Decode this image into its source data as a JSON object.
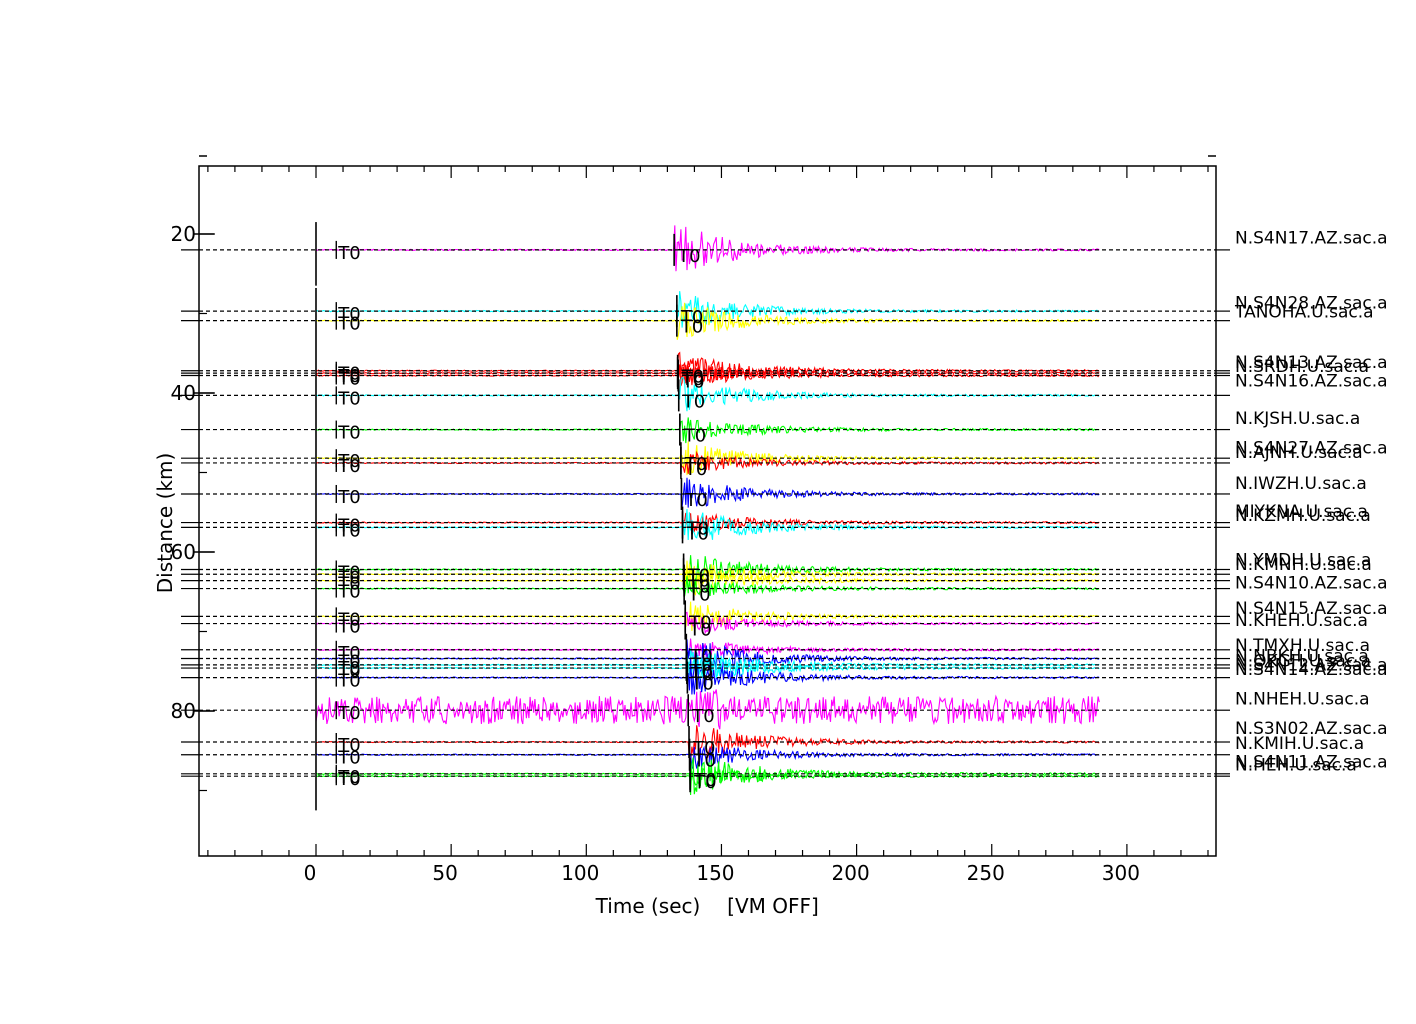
{
  "chart_data": {
    "type": "line",
    "title": "",
    "xlabel": "Time (sec)",
    "xlabel_suffix": "[VM OFF]",
    "ylabel": "Distance (km)",
    "xlim": [
      -43,
      333
    ],
    "ylim": [
      3,
      104
    ],
    "x_ticks": [
      0,
      50,
      100,
      150,
      200,
      250,
      300
    ],
    "y_ticks": [
      20,
      40,
      60,
      80
    ],
    "grid": false,
    "trace_start_time": 0,
    "trace_end_time": 290,
    "pick_label": "T0",
    "series": [
      {
        "name": "N.S4N17.AZ.sac.a",
        "distance": 22.0,
        "color": "#ff00ff",
        "t0": 132.5,
        "amp": 4.6
      },
      {
        "name": "N.S4N28.AZ.sac.a",
        "distance": 29.7,
        "color": "#00ffff",
        "t0": 133.5,
        "amp": 3.4
      },
      {
        "name": "TANOHA.U.sac.a",
        "distance": 30.9,
        "color": "#ffff00",
        "t0": 133.5,
        "amp": 3.4
      },
      {
        "name": "N.S4N13.AZ.sac.a",
        "distance": 37.2,
        "color": "#ff0000",
        "t0": 133.8,
        "amp": 3.2
      },
      {
        "name": "N.SRDH.U.sac.a",
        "distance": 37.5,
        "color": "#ff0000",
        "t0": 133.8,
        "amp": 2.0
      },
      {
        "name": "N.S4N16.AZ.sac.a",
        "distance": 37.8,
        "color": "#ff0000",
        "t0": 134.0,
        "amp": 2.0
      },
      {
        "name": "N.KJSH.U.sac.a",
        "distance": 40.3,
        "color": "#00ffff",
        "t0": 134.2,
        "amp": 3.0
      },
      {
        "name": "N.KJSH.U.sac.a",
        "distance": 44.6,
        "color": "#00ff00",
        "t0": 134.6,
        "amp": 2.4
      },
      {
        "name": "N.S4N27.AZ.sac.a",
        "distance": 48.2,
        "color": "#ffff00",
        "t0": 135.0,
        "amp": 3.0
      },
      {
        "name": "N.AJNH.U.sac.a",
        "distance": 48.8,
        "color": "#ff0000",
        "t0": 135.0,
        "amp": 2.0
      },
      {
        "name": "N.IWZH.U.sac.a",
        "distance": 52.7,
        "color": "#0000ff",
        "t0": 135.2,
        "amp": 2.8
      },
      {
        "name": "MIYKNA.U.sac.a",
        "distance": 56.3,
        "color": "#ff0000",
        "t0": 135.6,
        "amp": 2.0
      },
      {
        "name": "N.KZMH.U.sac.a",
        "distance": 56.9,
        "color": "#00ffff",
        "t0": 135.6,
        "amp": 3.2
      },
      {
        "name": "N.YMDH.U.sac.a",
        "distance": 62.2,
        "color": "#00ff00",
        "t0": 136.0,
        "amp": 3.0
      },
      {
        "name": "N.KMNH.U.sac.a",
        "distance": 62.8,
        "color": "#ffff00",
        "t0": 136.0,
        "amp": 2.4
      },
      {
        "name": "N.S4N10.AZ.sac.a",
        "distance": 63.6,
        "color": "#ffff00",
        "t0": 136.2,
        "amp": 2.6
      },
      {
        "name": "N.S4N10.AZ.sac.a",
        "distance": 64.6,
        "color": "#00ff00",
        "t0": 136.2,
        "amp": 2.2
      },
      {
        "name": "N.S4N15.AZ.sac.a",
        "distance": 68.1,
        "color": "#ffff00",
        "t0": 136.6,
        "amp": 2.8
      },
      {
        "name": "N.KHEH.U.sac.a",
        "distance": 69.0,
        "color": "#ff00ff",
        "t0": 136.6,
        "amp": 2.0
      },
      {
        "name": "N.TMXH.U.sac.a",
        "distance": 72.3,
        "color": "#ff00ff",
        "t0": 137.0,
        "amp": 2.0
      },
      {
        "name": "N.NBKH.U.sac.a",
        "distance": 73.4,
        "color": "#0000ff",
        "t0": 137.0,
        "amp": 3.6
      },
      {
        "name": "N.OKGH.U.sac.a",
        "distance": 74.2,
        "color": "#00ffff",
        "t0": 137.0,
        "amp": 3.0
      },
      {
        "name": "N.S4N14.AZ.sac.a",
        "distance": 74.6,
        "color": "#00ffff",
        "t0": 137.2,
        "amp": 2.6
      },
      {
        "name": "N.S4N14.AZ.sac.a",
        "distance": 75.8,
        "color": "#0000ff",
        "t0": 137.4,
        "amp": 3.2
      },
      {
        "name": "N.NHEH.U.sac.a",
        "distance": 79.9,
        "color": "#ff00ff",
        "t0": 137.7,
        "amp": 3.2,
        "noisy": true
      },
      {
        "name": "N.S3N02.AZ.sac.a",
        "distance": 83.9,
        "color": "#ff0000",
        "t0": 138.0,
        "amp": 3.4
      },
      {
        "name": "N.KMIH.U.sac.a",
        "distance": 85.5,
        "color": "#0000ff",
        "t0": 138.2,
        "amp": 2.4
      },
      {
        "name": "N.S4N11.AZ.sac.a",
        "distance": 87.9,
        "color": "#00ff00",
        "t0": 138.4,
        "amp": 3.6
      },
      {
        "name": "N.HEH.U.sac.a",
        "distance": 88.2,
        "color": "#00ff00",
        "t0": 138.4,
        "amp": 1.8
      }
    ],
    "station_labels": [
      {
        "text": "N.S4N17.AZ.sac.a",
        "distance": 20.3
      },
      {
        "text": "N.S4N28.AZ.sac.a",
        "distance": 28.5
      },
      {
        "text": "TANOHA.U.sac.a",
        "distance": 29.6
      },
      {
        "text": "N.S4N13.AZ.sac.a",
        "distance": 36.0
      },
      {
        "text": "N.SRDH.U.sac.a",
        "distance": 36.5
      },
      {
        "text": "N.S4N16.AZ.sac.a",
        "distance": 38.3
      },
      {
        "text": "N.KJSH.U.sac.a",
        "distance": 43.0
      },
      {
        "text": "N.S4N27.AZ.sac.a",
        "distance": 46.7
      },
      {
        "text": "N.AJNH.U.sac.a",
        "distance": 47.3
      },
      {
        "text": "N.IWZH.U.sac.a",
        "distance": 51.2
      },
      {
        "text": "MIYKNA.U.sac.a",
        "distance": 54.7
      },
      {
        "text": "N.KZMH.U.sac.a",
        "distance": 55.2
      },
      {
        "text": "N.YMDH.U.sac.a",
        "distance": 60.8
      },
      {
        "text": "N.KMNH.U.sac.a",
        "distance": 61.4
      },
      {
        "text": "N.S4N10.AZ.sac.a",
        "distance": 63.7
      },
      {
        "text": "N.S4N15.AZ.sac.a",
        "distance": 66.9
      },
      {
        "text": "N.KHEH.U.sac.a",
        "distance": 68.4
      },
      {
        "text": "N.TMXH.U.sac.a",
        "distance": 71.6
      },
      {
        "text": "N.NBKH.U.sac.a",
        "distance": 72.9
      },
      {
        "text": "N.OKGH.U.sac.a",
        "distance": 73.5
      },
      {
        "text": "N.S4N12.AZ.sac.a",
        "distance": 74.0
      },
      {
        "text": "N.S4N14.AZ.sac.a",
        "distance": 74.6
      },
      {
        "text": "N.NHEH.U.sac.a",
        "distance": 78.3
      },
      {
        "text": "N.S3N02.AZ.sac.a",
        "distance": 82.0
      },
      {
        "text": "N.KMIH.U.sac.a",
        "distance": 83.9
      },
      {
        "text": "N.S4N11.AZ.sac.a",
        "distance": 86.2
      },
      {
        "text": "N.HEH.U.sac.a",
        "distance": 86.6
      }
    ]
  }
}
